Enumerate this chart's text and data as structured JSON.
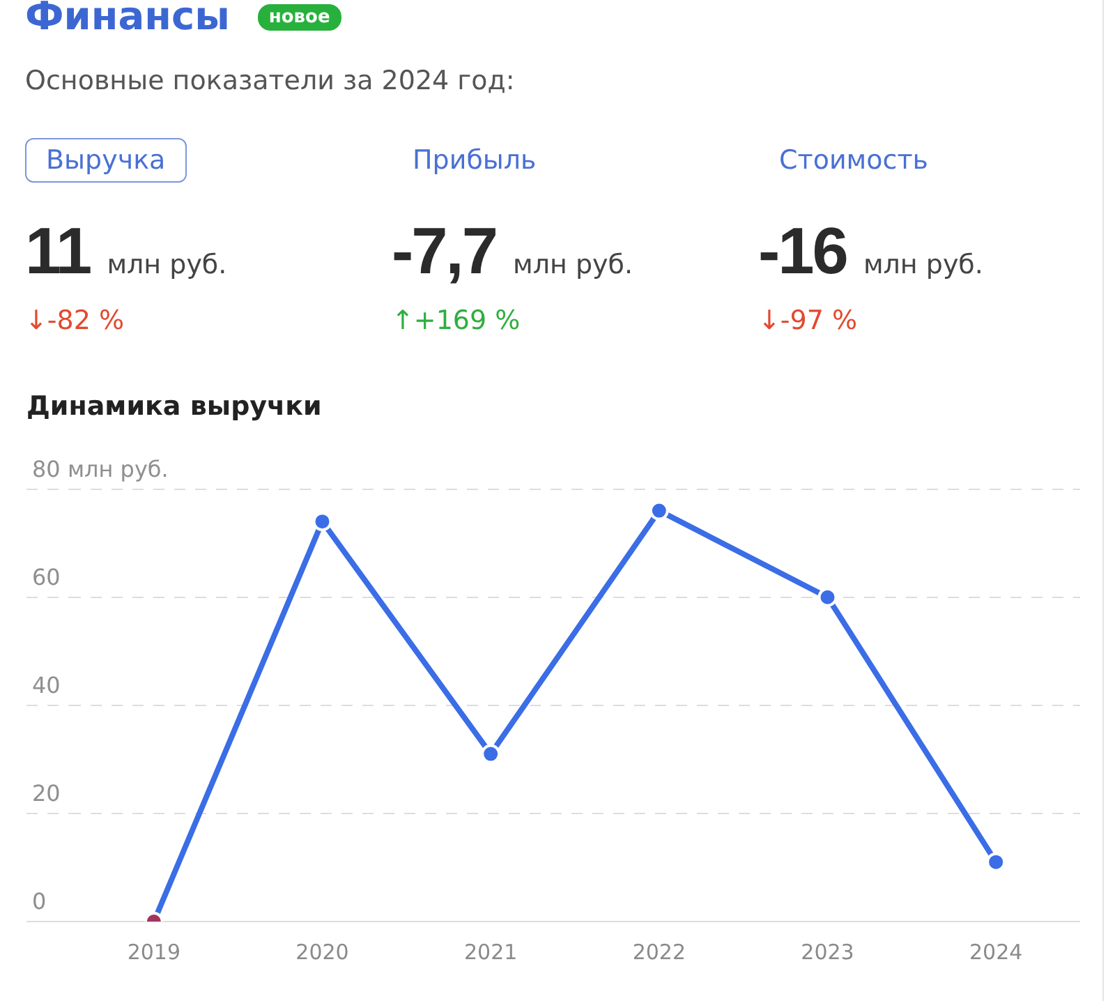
{
  "chart_data": [
    {
      "type": "other",
      "title": "Финансы",
      "subtitle": "Основные показатели за 2024 год:",
      "annotations": [
        "новое",
        "млн руб.",
        "млн руб.",
        "млн руб."
      ],
      "categories": [
        "Выручка",
        "Прибыль",
        "Стоимость"
      ],
      "series": [
        {
          "values": [
            11,
            -7.7,
            -16
          ],
          "value_labels": [
            "11",
            "-7,7",
            "-16"
          ],
          "color": "#2b2b2b"
        },
        {
          "values": [
            -82,
            169,
            -97
          ],
          "value_labels": [
            "↓-82 %",
            "↑+169 %",
            "↓-97 %"
          ],
          "colors": [
            "#e2492f",
            "#2fae3f",
            "#e2492f"
          ]
        }
      ]
    },
    {
      "type": "line",
      "title": "Динамика выручки",
      "categories": [
        "2019",
        "2020",
        "2021",
        "2022",
        "2023",
        "2024"
      ],
      "series": [
        {
          "color": "#3a6de6",
          "colors": [
            "#a3335f",
            "#3a6de6",
            "#3a6de6",
            "#3a6de6",
            "#3a6de6",
            "#3a6de6"
          ],
          "values": [
            0,
            74,
            31,
            76,
            60,
            11
          ]
        }
      ],
      "ylim": [
        0,
        80
      ],
      "yticks": [
        0,
        20,
        40,
        60,
        {
          "value": 80,
          "label": "80 млн руб."
        }
      ],
      "grid": "y",
      "marker": "circle",
      "line_style": "solid"
    }
  ]
}
